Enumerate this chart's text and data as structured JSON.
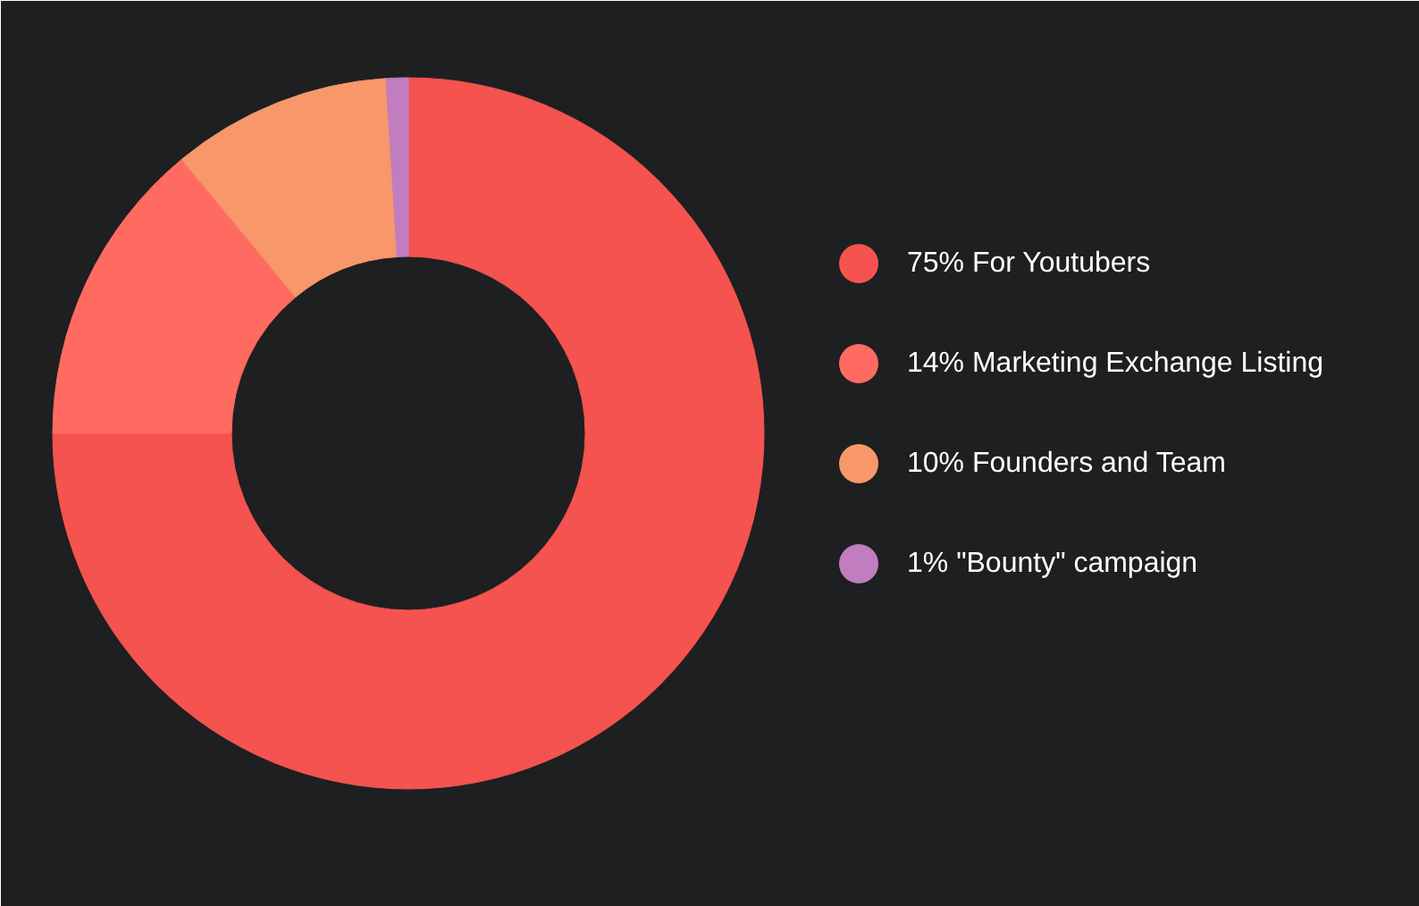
{
  "chart_data": {
    "type": "donut",
    "categories": [
      "75% For Youtubers",
      "14% Marketing Exchange Listing",
      "10% Founders and Team",
      "1% \"Bounty\" campaign"
    ],
    "values": [
      75,
      14,
      10,
      1
    ],
    "colors": [
      "#f5534f",
      "#ff6b61",
      "#f7976a",
      "#c07dc0"
    ],
    "legend": "right"
  }
}
